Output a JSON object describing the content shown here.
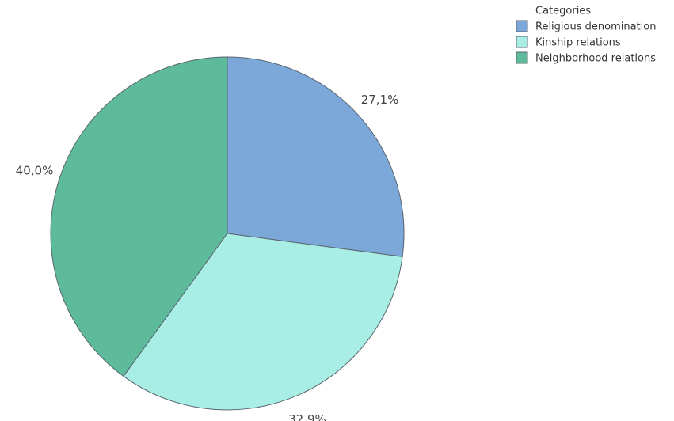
{
  "chart_data": {
    "type": "pie",
    "legend_title": "Categories",
    "categories": [
      "Religious denomination",
      "Kinship relations",
      "Neighborhood relations"
    ],
    "values": [
      27.1,
      32.9,
      40.0
    ],
    "value_labels": [
      "27,1%",
      "32,9%",
      "40,0%"
    ],
    "colors": [
      "#7ba7d9",
      "#a8eee4",
      "#5dbb9c"
    ],
    "legend": "top-right"
  }
}
